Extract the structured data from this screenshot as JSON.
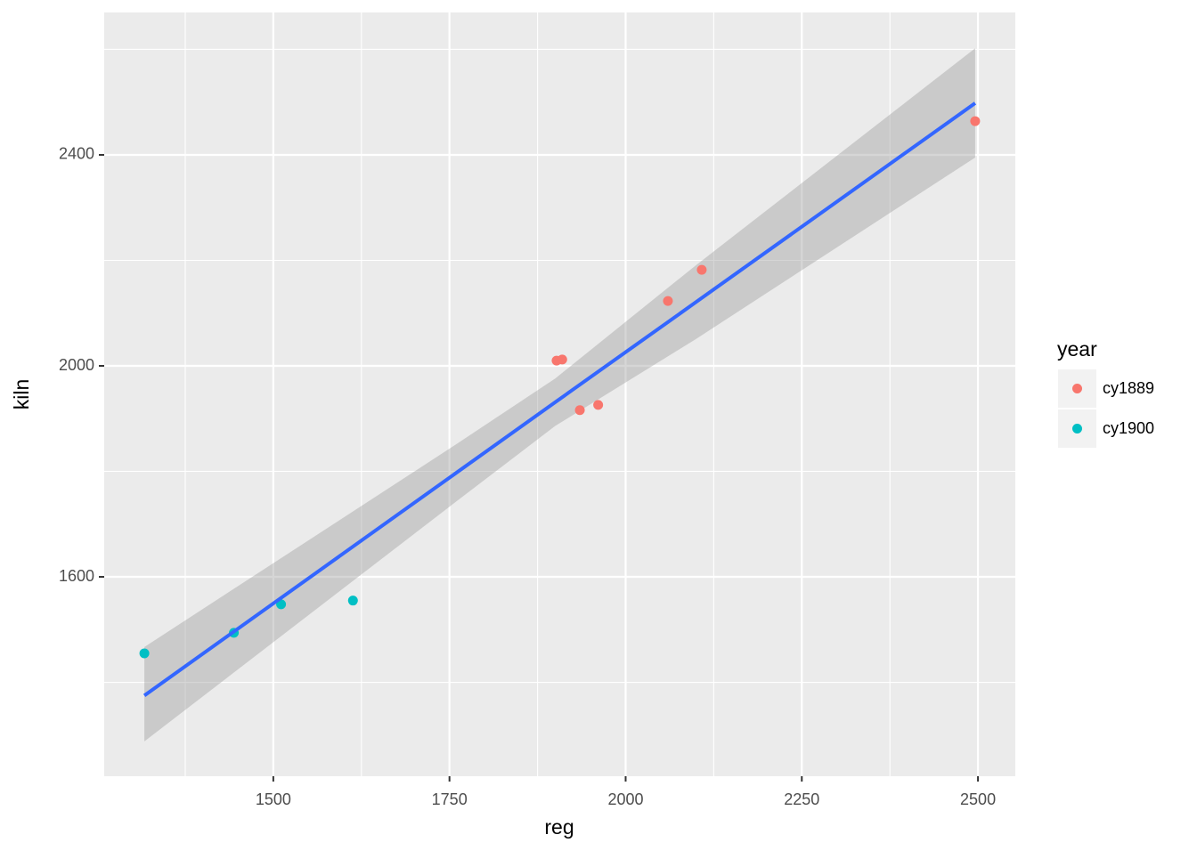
{
  "chart_data": {
    "type": "scatter",
    "x_label": "reg",
    "y_label": "kiln",
    "xlim": [
      1260,
      2553
    ],
    "ylim": [
      1222,
      2670
    ],
    "xticks": [
      1500,
      1750,
      2000,
      2250,
      2500
    ],
    "yticks": [
      1600,
      2000,
      2400
    ],
    "xminor": [
      1375,
      1625,
      1875,
      2125,
      2375
    ],
    "yminor": [
      1400,
      1800,
      2200,
      2600
    ],
    "grid": true,
    "legend_title": "year",
    "legend_position": "right",
    "series": [
      {
        "name": "cy1889",
        "color": "#F8766D",
        "x": [
          1902,
          1910,
          1935,
          1961,
          2060,
          2108,
          2496
        ],
        "values": [
          2010,
          2012,
          1916,
          1926,
          2123,
          2182,
          2464
        ]
      },
      {
        "name": "cy1900",
        "color": "#00BFC4",
        "x": [
          1317,
          1444,
          1511,
          1613
        ],
        "values": [
          1455,
          1494,
          1548,
          1555
        ]
      }
    ],
    "fit": {
      "color": "#3366FF",
      "band_color": "#999999",
      "x": [
        1317,
        1750,
        1900,
        2100,
        2496
      ],
      "values": [
        1375,
        1788,
        1931,
        2121,
        2498
      ],
      "lower": [
        1288,
        1733,
        1886,
        2051,
        2395
      ],
      "upper": [
        1467,
        1843,
        1976,
        2191,
        2602
      ]
    }
  }
}
